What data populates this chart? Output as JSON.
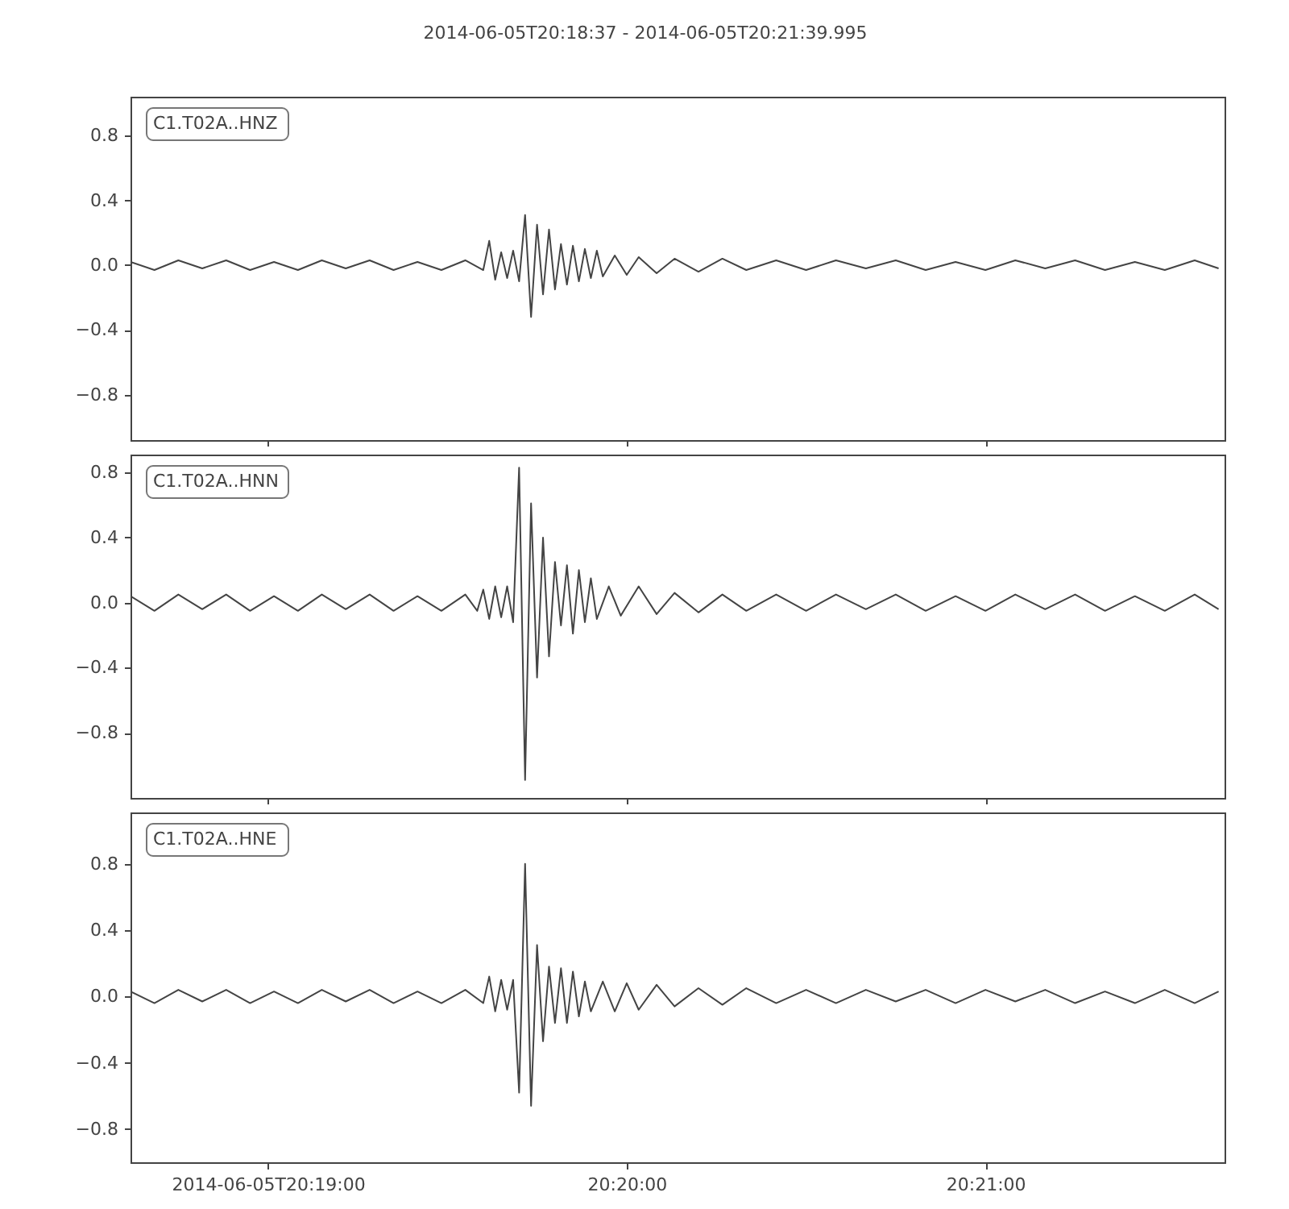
{
  "chart_data": [
    {
      "type": "line",
      "title": "2014-06-05T20:18:37  -  2014-06-05T20:21:39.995",
      "tick_labels": "y",
      "grid": false,
      "xlim": [
        "2014-06-05T20:18:37",
        "2014-06-05T20:21:39.995"
      ],
      "ylim": [
        -1.08,
        1.04
      ],
      "xticks": [
        {
          "value": "2014-06-05T20:19:00",
          "label": null
        },
        {
          "value": "2014-06-05T20:20:00",
          "label": null
        },
        {
          "value": "2014-06-05T20:21:00",
          "label": null
        }
      ],
      "yticks": [
        {
          "value": -0.8,
          "label": "−0.8"
        },
        {
          "value": -0.4,
          "label": "−0.4"
        },
        {
          "value": 0,
          "label": "0.0"
        },
        {
          "value": 0.4,
          "label": "0.4"
        },
        {
          "value": 0.8,
          "label": "0.8"
        }
      ],
      "x": [
        "2014-06-05T20:18:37",
        "2014-06-05T20:18:41",
        "2014-06-05T20:18:45",
        "2014-06-05T20:18:49",
        "2014-06-05T20:18:53",
        "2014-06-05T20:18:57",
        "2014-06-05T20:19:01",
        "2014-06-05T20:19:05",
        "2014-06-05T20:19:09",
        "2014-06-05T20:19:13",
        "2014-06-05T20:19:17",
        "2014-06-05T20:19:21",
        "2014-06-05T20:19:25",
        "2014-06-05T20:19:29",
        "2014-06-05T20:19:33",
        "2014-06-05T20:19:36",
        "2014-06-05T20:19:37",
        "2014-06-05T20:19:38",
        "2014-06-05T20:19:39",
        "2014-06-05T20:19:40",
        "2014-06-05T20:19:41",
        "2014-06-05T20:19:42",
        "2014-06-05T20:19:43",
        "2014-06-05T20:19:44",
        "2014-06-05T20:19:45",
        "2014-06-05T20:19:46",
        "2014-06-05T20:19:47",
        "2014-06-05T20:19:48",
        "2014-06-05T20:19:49",
        "2014-06-05T20:19:50",
        "2014-06-05T20:19:51",
        "2014-06-05T20:19:52",
        "2014-06-05T20:19:53",
        "2014-06-05T20:19:54",
        "2014-06-05T20:19:55",
        "2014-06-05T20:19:56",
        "2014-06-05T20:19:58",
        "2014-06-05T20:20:00",
        "2014-06-05T20:20:02",
        "2014-06-05T20:20:05",
        "2014-06-05T20:20:08",
        "2014-06-05T20:20:12",
        "2014-06-05T20:20:16",
        "2014-06-05T20:20:20",
        "2014-06-05T20:20:25",
        "2014-06-05T20:20:30",
        "2014-06-05T20:20:35",
        "2014-06-05T20:20:40",
        "2014-06-05T20:20:45",
        "2014-06-05T20:20:50",
        "2014-06-05T20:20:55",
        "2014-06-05T20:21:00",
        "2014-06-05T20:21:05",
        "2014-06-05T20:21:10",
        "2014-06-05T20:21:15",
        "2014-06-05T20:21:20",
        "2014-06-05T20:21:25",
        "2014-06-05T20:21:30",
        "2014-06-05T20:21:35",
        "2014-06-05T20:21:39"
      ],
      "series": [
        {
          "name": "C1.T02A..HNZ",
          "color": "#444444",
          "values": [
            0.02,
            -0.03,
            0.03,
            -0.02,
            0.03,
            -0.03,
            0.02,
            -0.03,
            0.03,
            -0.02,
            0.03,
            -0.03,
            0.02,
            -0.03,
            0.03,
            -0.03,
            0.15,
            -0.09,
            0.08,
            -0.08,
            0.09,
            -0.1,
            0.31,
            -0.32,
            0.25,
            -0.18,
            0.22,
            -0.15,
            0.13,
            -0.12,
            0.12,
            -0.1,
            0.1,
            -0.08,
            0.09,
            -0.07,
            0.06,
            -0.06,
            0.05,
            -0.05,
            0.04,
            -0.04,
            0.04,
            -0.03,
            0.03,
            -0.03,
            0.03,
            -0.02,
            0.03,
            -0.03,
            0.02,
            -0.03,
            0.03,
            -0.02,
            0.03,
            -0.03,
            0.02,
            -0.03,
            0.03,
            -0.02
          ]
        }
      ]
    },
    {
      "type": "line",
      "tick_labels": "y",
      "grid": false,
      "xlim": [
        "2014-06-05T20:18:37",
        "2014-06-05T20:21:39.995"
      ],
      "ylim": [
        -1.2,
        0.91
      ],
      "xticks": [
        {
          "value": "2014-06-05T20:19:00",
          "label": null
        },
        {
          "value": "2014-06-05T20:20:00",
          "label": null
        },
        {
          "value": "2014-06-05T20:21:00",
          "label": null
        }
      ],
      "yticks": [
        {
          "value": -0.8,
          "label": "−0.8"
        },
        {
          "value": -0.4,
          "label": "−0.4"
        },
        {
          "value": 0,
          "label": "0.0"
        },
        {
          "value": 0.4,
          "label": "0.4"
        },
        {
          "value": 0.8,
          "label": "0.8"
        }
      ],
      "x": [
        "2014-06-05T20:18:37",
        "2014-06-05T20:18:41",
        "2014-06-05T20:18:45",
        "2014-06-05T20:18:49",
        "2014-06-05T20:18:53",
        "2014-06-05T20:18:57",
        "2014-06-05T20:19:01",
        "2014-06-05T20:19:05",
        "2014-06-05T20:19:09",
        "2014-06-05T20:19:13",
        "2014-06-05T20:19:17",
        "2014-06-05T20:19:21",
        "2014-06-05T20:19:25",
        "2014-06-05T20:19:29",
        "2014-06-05T20:19:33",
        "2014-06-05T20:19:35",
        "2014-06-05T20:19:36",
        "2014-06-05T20:19:37",
        "2014-06-05T20:19:38",
        "2014-06-05T20:19:39",
        "2014-06-05T20:19:40",
        "2014-06-05T20:19:41",
        "2014-06-05T20:19:42",
        "2014-06-05T20:19:43",
        "2014-06-05T20:19:44",
        "2014-06-05T20:19:45",
        "2014-06-05T20:19:46",
        "2014-06-05T20:19:47",
        "2014-06-05T20:19:48",
        "2014-06-05T20:19:49",
        "2014-06-05T20:19:50",
        "2014-06-05T20:19:51",
        "2014-06-05T20:19:52",
        "2014-06-05T20:19:53",
        "2014-06-05T20:19:54",
        "2014-06-05T20:19:55",
        "2014-06-05T20:19:57",
        "2014-06-05T20:19:59",
        "2014-06-05T20:20:02",
        "2014-06-05T20:20:05",
        "2014-06-05T20:20:08",
        "2014-06-05T20:20:12",
        "2014-06-05T20:20:16",
        "2014-06-05T20:20:20",
        "2014-06-05T20:20:25",
        "2014-06-05T20:20:30",
        "2014-06-05T20:20:35",
        "2014-06-05T20:20:40",
        "2014-06-05T20:20:45",
        "2014-06-05T20:20:50",
        "2014-06-05T20:20:55",
        "2014-06-05T20:21:00",
        "2014-06-05T20:21:05",
        "2014-06-05T20:21:10",
        "2014-06-05T20:21:15",
        "2014-06-05T20:21:20",
        "2014-06-05T20:21:25",
        "2014-06-05T20:21:30",
        "2014-06-05T20:21:35",
        "2014-06-05T20:21:39"
      ],
      "series": [
        {
          "name": "C1.T02A..HNN",
          "color": "#444444",
          "values": [
            0.04,
            -0.05,
            0.05,
            -0.04,
            0.05,
            -0.05,
            0.04,
            -0.05,
            0.05,
            -0.04,
            0.05,
            -0.05,
            0.04,
            -0.05,
            0.05,
            -0.05,
            0.08,
            -0.1,
            0.1,
            -0.09,
            0.1,
            -0.12,
            0.83,
            -1.09,
            0.61,
            -0.46,
            0.4,
            -0.33,
            0.25,
            -0.14,
            0.23,
            -0.19,
            0.2,
            -0.12,
            0.15,
            -0.1,
            0.1,
            -0.08,
            0.1,
            -0.07,
            0.06,
            -0.06,
            0.05,
            -0.05,
            0.05,
            -0.05,
            0.05,
            -0.04,
            0.05,
            -0.05,
            0.04,
            -0.05,
            0.05,
            -0.04,
            0.05,
            -0.05,
            0.04,
            -0.05,
            0.05,
            -0.04
          ]
        }
      ]
    },
    {
      "type": "line",
      "grid": false,
      "xlim": [
        "2014-06-05T20:18:37",
        "2014-06-05T20:21:39.995"
      ],
      "ylim": [
        -1.0,
        1.11
      ],
      "xticks": [
        {
          "value": "2014-06-05T20:19:00",
          "label": "2014-06-05T20:19:00"
        },
        {
          "value": "2014-06-05T20:20:00",
          "label": "20:20:00"
        },
        {
          "value": "2014-06-05T20:21:00",
          "label": "20:21:00"
        }
      ],
      "yticks": [
        {
          "value": -0.8,
          "label": "−0.8"
        },
        {
          "value": -0.4,
          "label": "−0.4"
        },
        {
          "value": 0,
          "label": "0.0"
        },
        {
          "value": 0.4,
          "label": "0.4"
        },
        {
          "value": 0.8,
          "label": "0.8"
        }
      ],
      "x": [
        "2014-06-05T20:18:37",
        "2014-06-05T20:18:41",
        "2014-06-05T20:18:45",
        "2014-06-05T20:18:49",
        "2014-06-05T20:18:53",
        "2014-06-05T20:18:57",
        "2014-06-05T20:19:01",
        "2014-06-05T20:19:05",
        "2014-06-05T20:19:09",
        "2014-06-05T20:19:13",
        "2014-06-05T20:19:17",
        "2014-06-05T20:19:21",
        "2014-06-05T20:19:25",
        "2014-06-05T20:19:29",
        "2014-06-05T20:19:33",
        "2014-06-05T20:19:36",
        "2014-06-05T20:19:37",
        "2014-06-05T20:19:38",
        "2014-06-05T20:19:39",
        "2014-06-05T20:19:40",
        "2014-06-05T20:19:41",
        "2014-06-05T20:19:42",
        "2014-06-05T20:19:43",
        "2014-06-05T20:19:44",
        "2014-06-05T20:19:45",
        "2014-06-05T20:19:46",
        "2014-06-05T20:19:47",
        "2014-06-05T20:19:48",
        "2014-06-05T20:19:49",
        "2014-06-05T20:19:50",
        "2014-06-05T20:19:51",
        "2014-06-05T20:19:52",
        "2014-06-05T20:19:53",
        "2014-06-05T20:19:54",
        "2014-06-05T20:19:56",
        "2014-06-05T20:19:58",
        "2014-06-05T20:20:00",
        "2014-06-05T20:20:02",
        "2014-06-05T20:20:05",
        "2014-06-05T20:20:08",
        "2014-06-05T20:20:12",
        "2014-06-05T20:20:16",
        "2014-06-05T20:20:20",
        "2014-06-05T20:20:25",
        "2014-06-05T20:20:30",
        "2014-06-05T20:20:35",
        "2014-06-05T20:20:40",
        "2014-06-05T20:20:45",
        "2014-06-05T20:20:50",
        "2014-06-05T20:20:55",
        "2014-06-05T20:21:00",
        "2014-06-05T20:21:05",
        "2014-06-05T20:21:10",
        "2014-06-05T20:21:15",
        "2014-06-05T20:21:20",
        "2014-06-05T20:21:25",
        "2014-06-05T20:21:30",
        "2014-06-05T20:21:35",
        "2014-06-05T20:21:39"
      ],
      "series": [
        {
          "name": "C1.T02A..HNE",
          "color": "#444444",
          "values": [
            0.03,
            -0.04,
            0.04,
            -0.03,
            0.04,
            -0.04,
            0.03,
            -0.04,
            0.04,
            -0.03,
            0.04,
            -0.04,
            0.03,
            -0.04,
            0.04,
            -0.04,
            0.12,
            -0.09,
            0.1,
            -0.08,
            0.1,
            -0.58,
            0.8,
            -0.66,
            0.31,
            -0.27,
            0.18,
            -0.16,
            0.17,
            -0.16,
            0.15,
            -0.12,
            0.09,
            -0.09,
            0.09,
            -0.09,
            0.08,
            -0.08,
            0.07,
            -0.06,
            0.05,
            -0.05,
            0.05,
            -0.04,
            0.04,
            -0.04,
            0.04,
            -0.03,
            0.04,
            -0.04,
            0.04,
            -0.03,
            0.04,
            -0.04,
            0.03,
            -0.04,
            0.04,
            -0.04,
            0.03
          ]
        }
      ]
    }
  ]
}
